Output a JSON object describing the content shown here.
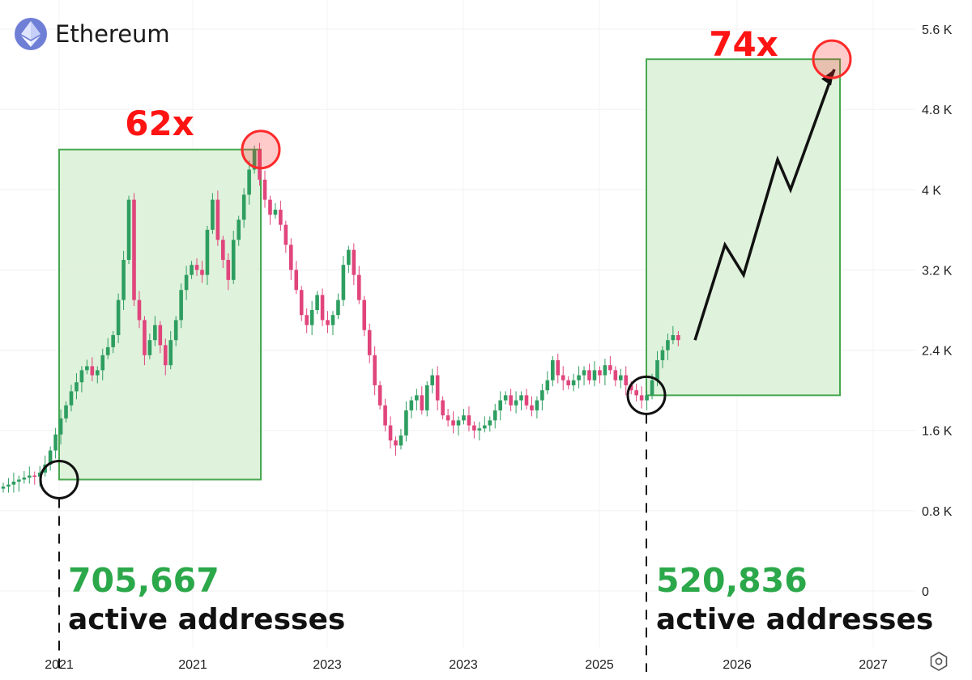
{
  "header": {
    "asset_name": "Ethereum",
    "logo_icon": "ethereum-icon"
  },
  "chart_data": {
    "type": "candlestick",
    "title": "Ethereum",
    "xlabel": "",
    "ylabel": "",
    "ylim": [
      0,
      5800
    ],
    "y_ticks": [
      "0",
      "0.8 K",
      "1.6 K",
      "2.4 K",
      "3.2 K",
      "4 K",
      "4.8 K",
      "5.6 K"
    ],
    "y_tick_values": [
      0,
      800,
      1600,
      2400,
      3200,
      4000,
      4800,
      5600
    ],
    "x_ticks": [
      "2021",
      "2021",
      "2023",
      "2023",
      "2025",
      "2026",
      "2027"
    ],
    "grid": true,
    "series": [
      {
        "type": "close",
        "values": [
          1040,
          1060,
          1090,
          1110,
          1130,
          1150,
          1140,
          1180,
          1260,
          1400,
          1560,
          1720,
          1850,
          1990,
          2080,
          2200,
          2240,
          2150,
          2200,
          2350,
          2430,
          2550,
          2900,
          3300,
          3900,
          2900,
          2700,
          2350,
          2500,
          2650,
          2450,
          2250,
          2500,
          2700,
          3000,
          3150,
          3250,
          3200,
          3150,
          3600,
          3900,
          3500,
          3300,
          3100,
          3500,
          3700,
          3950,
          4200,
          4400,
          4100,
          3900,
          3750,
          3800,
          3650,
          3450,
          3200,
          3000,
          2750,
          2650,
          2800,
          2950,
          2700,
          2650,
          2750,
          2900,
          3250,
          3400,
          3150,
          2900,
          2600,
          2350,
          2050,
          1850,
          1650,
          1500,
          1450,
          1550,
          1800,
          1900,
          1950,
          1800,
          2050,
          2150,
          1900,
          1750,
          1700,
          1650,
          1700,
          1750,
          1650,
          1600,
          1620,
          1650,
          1700,
          1800,
          1900,
          1950,
          1850,
          1900,
          1950,
          1850,
          1800,
          1900,
          2000,
          2100,
          2300,
          2150,
          2100,
          2050,
          2100,
          2150,
          2200,
          2100,
          2200,
          2150,
          2250,
          2200,
          2100,
          2150,
          2050,
          2000,
          1950,
          1900,
          1950,
          2100,
          2300,
          2400,
          2500,
          2550,
          2500
        ]
      },
      {
        "type": "projection",
        "values": [
          2500,
          3450,
          3150,
          4300,
          4000,
          5200
        ]
      }
    ],
    "annotations": [
      {
        "text": "62x",
        "color": "#ff1414"
      },
      {
        "text": "74x",
        "color": "#ff1414"
      },
      {
        "text": "705,667",
        "color": "#2ba84a"
      },
      {
        "text": "active addresses",
        "color": "#111111"
      },
      {
        "text": "520,836",
        "color": "#2ba84a"
      },
      {
        "text": "active addresses",
        "color": "#111111"
      }
    ],
    "colors": {
      "up": "#2e9e60",
      "down": "#e0457b",
      "box_fill": "#d9f0d6",
      "box_stroke": "#47a84f",
      "highlight": "#ff2a2a"
    }
  }
}
